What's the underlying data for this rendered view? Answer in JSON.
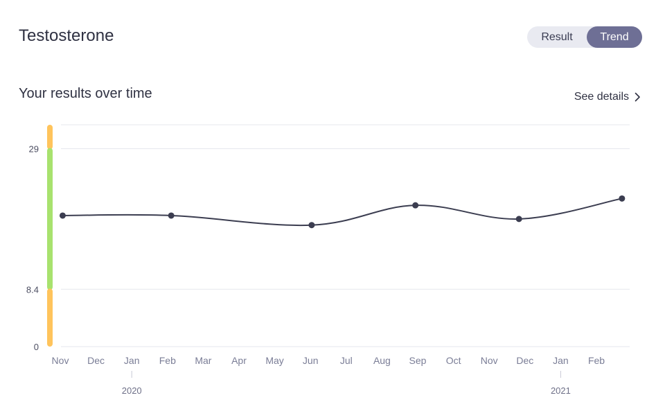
{
  "header": {
    "title": "Testosterone",
    "toggle": {
      "result_label": "Result",
      "trend_label": "Trend",
      "selected": "Trend"
    }
  },
  "section": {
    "title": "Your results over time",
    "details_label": "See details",
    "details_icon": "chevron-right-icon"
  },
  "colors": {
    "line": "#3b3d50",
    "point": "#3b3d50",
    "normal_range": "#a8e26e",
    "out_of_range": "#ffc45c",
    "grid": "#e6e7ee",
    "toggle_active": "#6e6f95"
  },
  "chart_data": {
    "type": "line",
    "x_months": [
      "Nov",
      "Dec",
      "Jan",
      "Feb",
      "Mar",
      "Apr",
      "May",
      "Jun",
      "Jul",
      "Aug",
      "Sep",
      "Oct",
      "Nov",
      "Dec",
      "Jan",
      "Feb"
    ],
    "year_labels": [
      {
        "label": "2020",
        "month": "Jan"
      },
      {
        "label": "2021",
        "month": "Jan"
      }
    ],
    "y_ticks": [
      0,
      8.4,
      29
    ],
    "ylim": [
      0,
      32.5
    ],
    "reference_range": {
      "low": 8.4,
      "high": 29
    },
    "grid": true,
    "series": [
      {
        "values": [
          {
            "date": "2019-11-03",
            "y": 19.2
          },
          {
            "date": "2020-02-04",
            "y": 19.2
          },
          {
            "date": "2020-06-02",
            "y": 17.8
          },
          {
            "date": "2020-08-30",
            "y": 20.7
          },
          {
            "date": "2020-11-26",
            "y": 18.7
          },
          {
            "date": "2021-02-21",
            "y": 21.7
          }
        ]
      }
    ]
  }
}
